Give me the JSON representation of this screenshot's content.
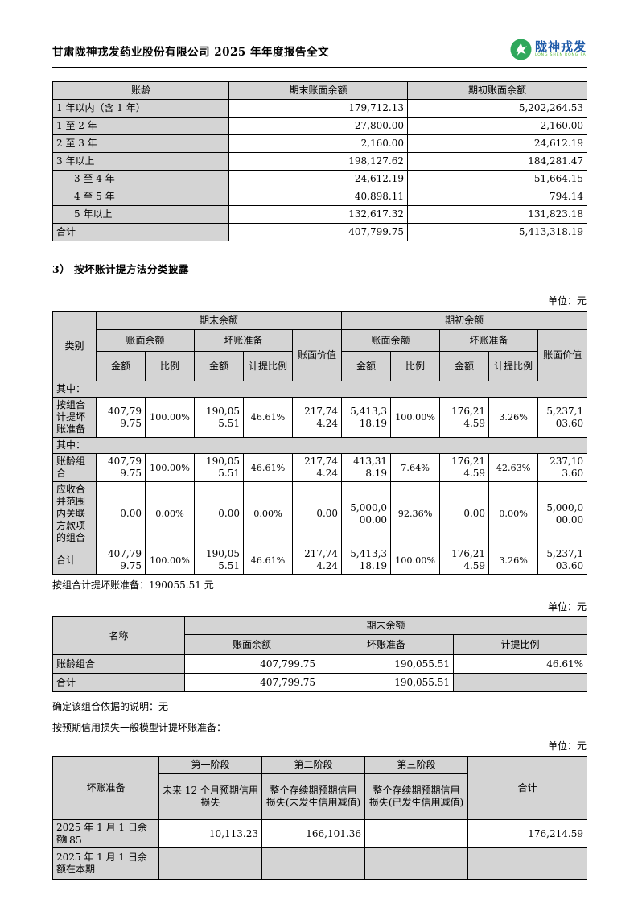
{
  "header": {
    "title": "甘肃陇神戎发药业股份有限公司 2025 年年度报告全文",
    "logo_cn": "陇神戎发",
    "logo_en": "LONG SHEN RONG FA"
  },
  "unit_label": "单位：元",
  "aging_table": {
    "headers": [
      "账龄",
      "期末账面余额",
      "期初账面余额"
    ],
    "rows": [
      {
        "label": "1 年以内（含 1 年）",
        "end": "179,712.13",
        "begin": "5,202,264.53",
        "indent": false
      },
      {
        "label": "1 至 2 年",
        "end": "27,800.00",
        "begin": "2,160.00",
        "indent": false
      },
      {
        "label": "2 至 3 年",
        "end": "2,160.00",
        "begin": "24,612.19",
        "indent": false
      },
      {
        "label": "3 年以上",
        "end": "198,127.62",
        "begin": "184,281.47",
        "indent": false
      },
      {
        "label": "3 至 4 年",
        "end": "24,612.19",
        "begin": "51,664.15",
        "indent": true
      },
      {
        "label": "4 至 5 年",
        "end": "40,898.11",
        "begin": "794.14",
        "indent": true
      },
      {
        "label": "5 年以上",
        "end": "132,617.32",
        "begin": "131,823.18",
        "indent": true
      },
      {
        "label": "合计",
        "end": "407,799.75",
        "begin": "5,413,318.19",
        "indent": false
      }
    ]
  },
  "section3_heading": "3） 按坏账计提方法分类披露",
  "method_table": {
    "h_category": "类别",
    "h_end": "期末余额",
    "h_begin": "期初余额",
    "h_book": "账面余额",
    "h_bad": "坏账准备",
    "h_carry": "账面价值",
    "h_amount": "金额",
    "h_ratio": "比例",
    "h_accrual": "计提比例",
    "section_label": "其中：",
    "rows": [
      {
        "type": "section"
      },
      {
        "type": "data",
        "label": "按组合计提坏账准备",
        "cells": [
          "407,799.75",
          "100.00%",
          "190,055.51",
          "46.61%",
          "217,744.24",
          "5,413,318.19",
          "100.00%",
          "176,214.59",
          "3.26%",
          "5,237,103.60"
        ]
      },
      {
        "type": "section"
      },
      {
        "type": "data",
        "label": "账龄组合",
        "cells": [
          "407,799.75",
          "100.00%",
          "190,055.51",
          "46.61%",
          "217,744.24",
          "413,318.19",
          "7.64%",
          "176,214.59",
          "42.63%",
          "237,103.60"
        ]
      },
      {
        "type": "data",
        "label": "应收合并范围内关联方款项的组合",
        "cells": [
          "0.00",
          "0.00%",
          "0.00",
          "0.00%",
          "0.00",
          "5,000,000.00",
          "92.36%",
          "0.00",
          "0.00%",
          "5,000,000.00"
        ]
      },
      {
        "type": "data",
        "label": "合计",
        "cells": [
          "407,799.75",
          "100.00%",
          "190,055.51",
          "46.61%",
          "217,744.24",
          "5,413,318.19",
          "100.00%",
          "176,214.59",
          "3.26%",
          "5,237,103.60"
        ]
      }
    ]
  },
  "note_after_method": "按组合计提坏账准备：190055.51 元",
  "portfolio_table": {
    "h_name": "名称",
    "h_end": "期末余额",
    "cols": [
      "账面余额",
      "坏账准备",
      "计提比例"
    ],
    "rows": [
      {
        "label": "账龄组合",
        "cells": [
          "407,799.75",
          "190,055.51",
          "46.61%"
        ]
      },
      {
        "label": "合计",
        "cells": [
          "407,799.75",
          "190,055.51",
          ""
        ]
      }
    ]
  },
  "note_basis": "确定该组合依据的说明：无",
  "note_ecl": "按预期信用损失一般模型计提坏账准备：",
  "stage_table": {
    "h_label": "坏账准备",
    "stages": [
      "第一阶段",
      "第二阶段",
      "第三阶段"
    ],
    "descs": [
      "未来 12 个月预期信用损失",
      "整个存续期预期信用损失(未发生信用减值)",
      "整个存续期预期信用损失(已发生信用减值)"
    ],
    "h_total": "合计",
    "rows": [
      {
        "label": "2025 年 1 月 1 日余额",
        "cells": [
          "10,113.23",
          "166,101.36",
          ""
        ],
        "total": "176,214.59",
        "gray": false
      },
      {
        "label": "2025 年 1 月 1 日余额在本期",
        "cells": [
          "",
          "",
          ""
        ],
        "total": "",
        "gray": true
      }
    ]
  },
  "page_number": "185"
}
